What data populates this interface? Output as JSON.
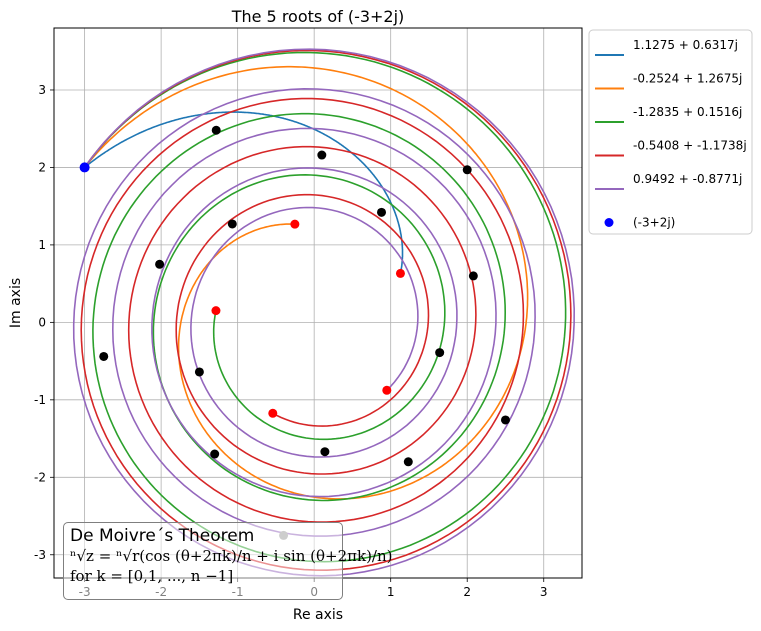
{
  "chart_data": {
    "type": "line",
    "title": "The 5 roots of (-3+2j)",
    "xlabel": "Re axis",
    "ylabel": "Im axis",
    "xlim": [
      -3.4,
      3.5
    ],
    "ylim": [
      -3.3,
      3.8
    ],
    "xticks": [
      -3,
      -2,
      -1,
      0,
      1,
      2,
      3
    ],
    "yticks": [
      -3,
      -2,
      -1,
      0,
      1,
      2,
      3
    ],
    "xtick_labels": [
      "-3",
      "-2",
      "-1",
      "0",
      "1",
      "2",
      "3"
    ],
    "ytick_labels": [
      "-3",
      "-2",
      "-1",
      "0",
      "1",
      "2",
      "3"
    ],
    "grid": true,
    "legend_position": "outside-top-right",
    "base_point": {
      "label": "(-3+2j)",
      "x": -3,
      "y": 2,
      "color": "#0000ff"
    },
    "series": [
      {
        "name": "1.1275 + 0.6317j",
        "color": "#1f77b4",
        "root": [
          1.1275,
          0.6317
        ],
        "markers": [
          [
            -1.28,
            2.48
          ],
          [
            0.1,
            2.16
          ],
          [
            0.88,
            1.42
          ]
        ]
      },
      {
        "name": "-0.2524 + 1.2675j",
        "color": "#ff7f0e",
        "root": [
          -0.2524,
          1.2675
        ],
        "markers": [
          [
            2.0,
            1.97
          ],
          [
            2.08,
            0.6
          ],
          [
            1.64,
            -0.39
          ],
          [
            1.23,
            -1.8
          ],
          [
            -1.5,
            -0.64
          ],
          [
            -1.07,
            1.27
          ]
        ]
      },
      {
        "name": "-1.2835 + 0.1516j",
        "color": "#2ca02c",
        "root": [
          -1.2835,
          0.1516
        ],
        "markers": [
          [
            -2.02,
            0.75
          ],
          [
            2.5,
            -1.26
          ]
        ]
      },
      {
        "name": "-0.5408 + -1.1738j",
        "color": "#d62728",
        "root": [
          -0.5408,
          -1.1738
        ],
        "markers": [
          [
            -2.75,
            -0.44
          ],
          [
            -1.3,
            -1.7
          ]
        ]
      },
      {
        "name": "0.9492 + -0.8771j",
        "color": "#9467bd",
        "root": [
          0.9492,
          -0.8771
        ],
        "markers": [
          [
            0.14,
            -1.67
          ]
        ]
      }
    ],
    "extra_marker": {
      "x": -0.4,
      "y": -2.75,
      "color": "#9a9a9a"
    },
    "annotation": {
      "title": "De Moivre´s Theorem",
      "formula": "ⁿ√z = ⁿ√r(cos (θ+2πk)/n + i sin (θ+2πk)/n)",
      "range_text": "for k = [0,1, ..., n −1]"
    }
  }
}
